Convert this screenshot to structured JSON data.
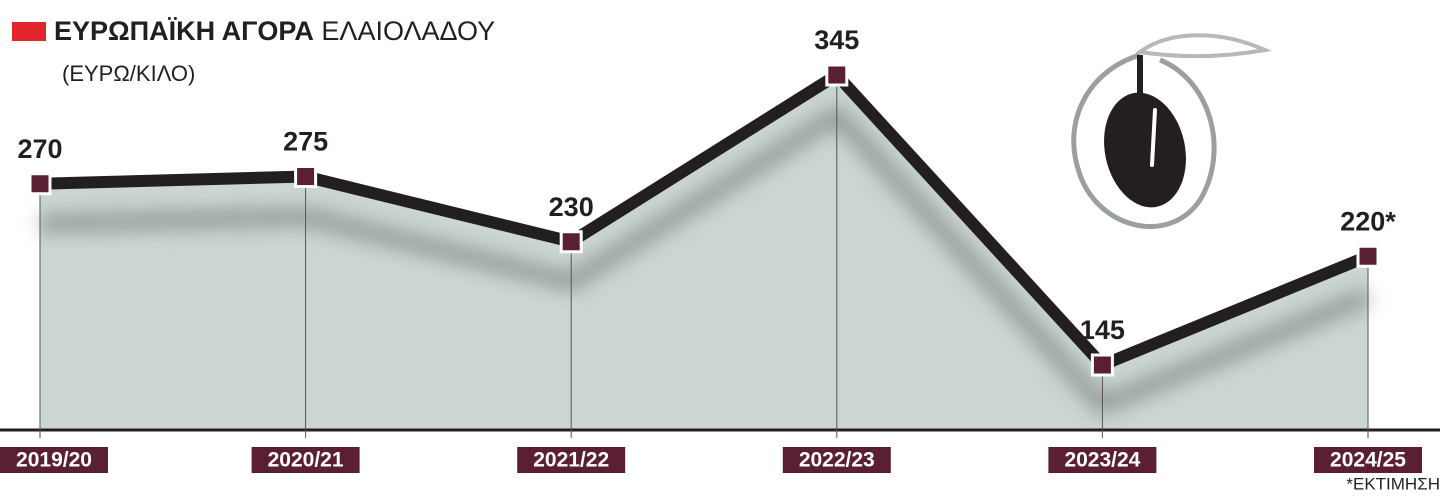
{
  "chart_data": {
    "type": "line",
    "title": [
      "ΕΥΡΩΠΑΪΚΗ ΑΓΟΡΑ",
      "ΕΛΑΙΟΛΑΔΟΥ"
    ],
    "subtitle": "(ΕΥΡΩ/ΚΙΛΟ)",
    "note": "*ΕΚΤΙΜΗΣΗ",
    "categories": [
      "2019/20",
      "2020/21",
      "2021/22",
      "2022/23",
      "2023/24",
      "2024/25"
    ],
    "values": [
      270,
      275,
      230,
      345,
      145,
      220
    ],
    "value_labels": [
      "270",
      "275",
      "230",
      "345",
      "145",
      "220*"
    ],
    "color": "#231f20",
    "marker_color": "#5b1f33",
    "area_color": "#cbd6d0",
    "title_marker_color": "#e3262c"
  }
}
